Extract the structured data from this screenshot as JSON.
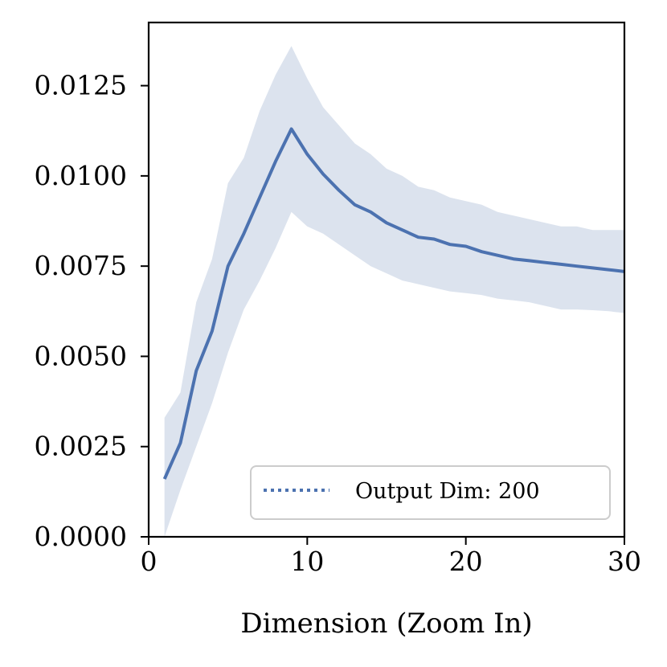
{
  "chart_data": {
    "type": "line",
    "title": "",
    "xlabel": "Dimension (Zoom In)",
    "ylabel": "",
    "xlim": [
      0,
      30
    ],
    "ylim": [
      0,
      0.01425
    ],
    "grid": false,
    "legend_position": "bottom-right",
    "x_ticks": [
      0,
      10,
      20,
      30
    ],
    "x_tick_labels": [
      "0",
      "10",
      "20",
      "30"
    ],
    "y_ticks": [
      0,
      0.0025,
      0.005,
      0.0075,
      0.01,
      0.0125
    ],
    "y_tick_labels": [
      "0.0000",
      "0.0025",
      "0.0050",
      "0.0075",
      "0.0100",
      "0.0125"
    ],
    "series": [
      {
        "name": "Output Dim: 200",
        "color": "#4c72b0",
        "band_color": "#dce3ee",
        "x": [
          1,
          2,
          3,
          4,
          5,
          6,
          7,
          8,
          9,
          10,
          11,
          12,
          13,
          14,
          15,
          16,
          17,
          18,
          19,
          20,
          21,
          22,
          23,
          24,
          25,
          26,
          27,
          28,
          29,
          30
        ],
        "mean": [
          0.0016,
          0.0026,
          0.0046,
          0.0057,
          0.0075,
          0.0084,
          0.0094,
          0.0104,
          0.0113,
          0.0106,
          0.01005,
          0.0096,
          0.0092,
          0.009,
          0.0087,
          0.0085,
          0.0083,
          0.00825,
          0.0081,
          0.00805,
          0.0079,
          0.0078,
          0.0077,
          0.00765,
          0.0076,
          0.00755,
          0.0075,
          0.00745,
          0.0074,
          0.00735
        ],
        "lower": [
          0.0,
          0.0013,
          0.0025,
          0.0037,
          0.0051,
          0.0063,
          0.0071,
          0.008,
          0.009,
          0.0086,
          0.0084,
          0.0081,
          0.0078,
          0.0075,
          0.0073,
          0.0071,
          0.007,
          0.0069,
          0.0068,
          0.00675,
          0.0067,
          0.0066,
          0.00655,
          0.0065,
          0.0064,
          0.0063,
          0.0063,
          0.00628,
          0.00625,
          0.0062
        ],
        "upper": [
          0.0033,
          0.004,
          0.0065,
          0.0077,
          0.0098,
          0.0105,
          0.0118,
          0.0128,
          0.0136,
          0.0127,
          0.0119,
          0.0114,
          0.0109,
          0.0106,
          0.0102,
          0.01,
          0.0097,
          0.0096,
          0.0094,
          0.0093,
          0.0092,
          0.009,
          0.0089,
          0.0088,
          0.0087,
          0.0086,
          0.0086,
          0.0085,
          0.0085,
          0.0085
        ]
      }
    ]
  }
}
